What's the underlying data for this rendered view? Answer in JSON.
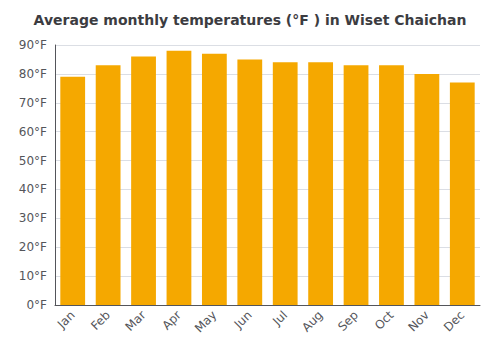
{
  "chart_data": {
    "type": "bar",
    "title": "Average monthly temperatures (°F ) in Wiset Chaichan",
    "categories": [
      "Jan",
      "Feb",
      "Mar",
      "Apr",
      "May",
      "Jun",
      "Jul",
      "Aug",
      "Sep",
      "Oct",
      "Nov",
      "Dec"
    ],
    "values": [
      79,
      83,
      86,
      88,
      87,
      85,
      84,
      84,
      83,
      83,
      80,
      77
    ],
    "color": "#F5A800",
    "ylim": [
      0,
      90
    ],
    "yticks": [
      {
        "value": 0,
        "label": "0°F"
      },
      {
        "value": 10,
        "label": "10°F"
      },
      {
        "value": 20,
        "label": "20°F"
      },
      {
        "value": 30,
        "label": "30°F"
      },
      {
        "value": 40,
        "label": "40°F"
      },
      {
        "value": 50,
        "label": "50°F"
      },
      {
        "value": 60,
        "label": "60°F"
      },
      {
        "value": 70,
        "label": "70°F"
      },
      {
        "value": 80,
        "label": "80°F"
      },
      {
        "value": 90,
        "label": "90°F"
      }
    ],
    "grid": true
  }
}
